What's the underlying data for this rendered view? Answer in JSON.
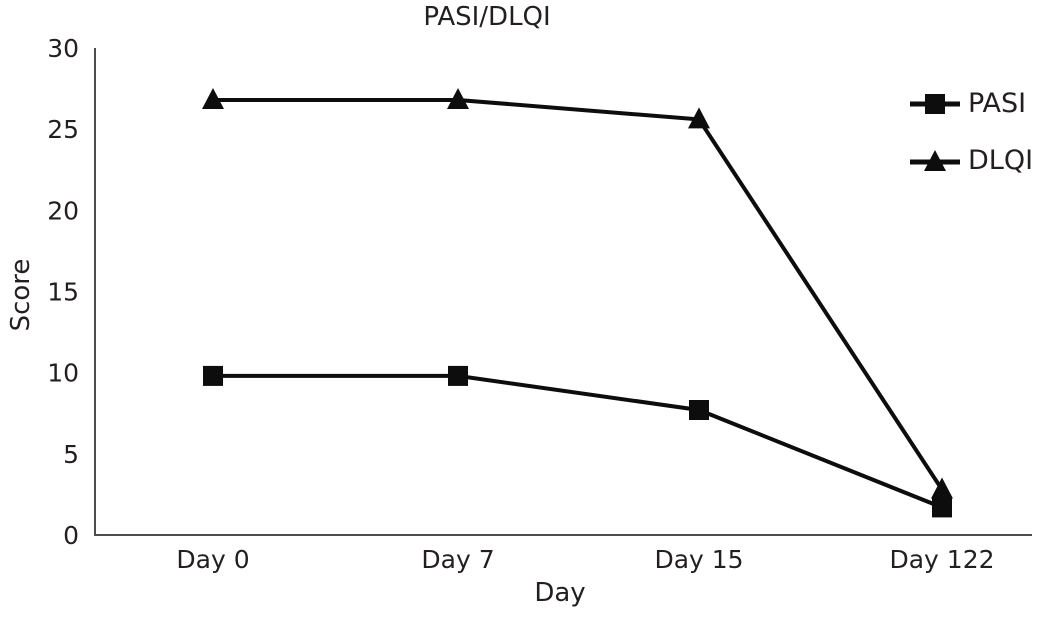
{
  "chart_data": {
    "type": "line",
    "title": "PASI/DLQI",
    "xlabel": "Day",
    "ylabel": "Score",
    "categories": [
      "Day 0",
      "Day 7",
      "Day 15",
      "Day 122"
    ],
    "series": [
      {
        "name": "PASI",
        "marker": "square",
        "color": "#0d0d0d",
        "values": [
          9.8,
          9.8,
          7.7,
          1.7
        ]
      },
      {
        "name": "DLQI",
        "marker": "triangle",
        "color": "#0d0d0d",
        "values": [
          26.8,
          26.8,
          25.6,
          2.8
        ]
      }
    ],
    "ylim": [
      0,
      30
    ],
    "yticks": [
      0,
      5,
      10,
      15,
      20,
      25,
      30
    ],
    "grid": false,
    "legend_position": "top-right",
    "axis_color": "#4d4d4d",
    "line_color": "#0d0d0d"
  }
}
